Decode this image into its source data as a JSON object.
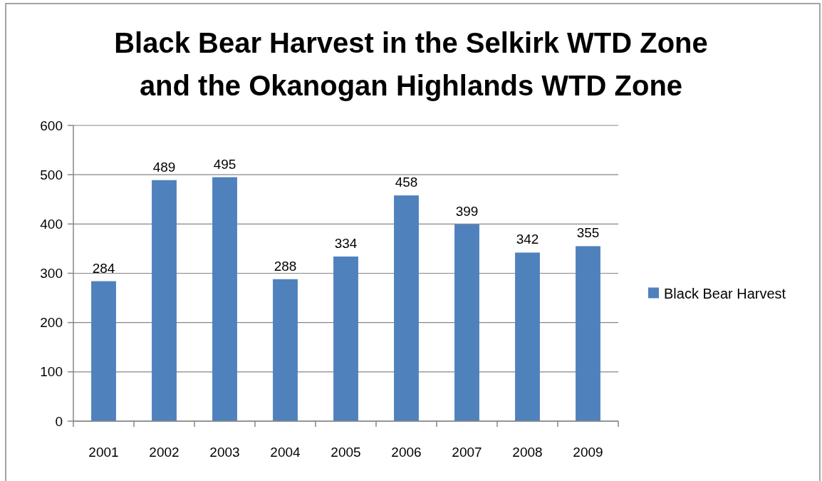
{
  "chart_data": {
    "type": "bar",
    "title": "Black Bear Harvest in the Selkirk WTD Zone and the Okanogan Highlands WTD Zone",
    "categories": [
      "2001",
      "2002",
      "2003",
      "2004",
      "2005",
      "2006",
      "2007",
      "2008",
      "2009"
    ],
    "series": [
      {
        "name": "Black Bear Harvest",
        "color": "#4f81bd",
        "values": [
          284,
          489,
          495,
          288,
          334,
          458,
          399,
          342,
          355
        ]
      }
    ],
    "ylim": [
      0,
      600
    ],
    "yticks": [
      0,
      100,
      200,
      300,
      400,
      500,
      600
    ],
    "grid": "y",
    "legend": "right",
    "data_labels": true
  }
}
